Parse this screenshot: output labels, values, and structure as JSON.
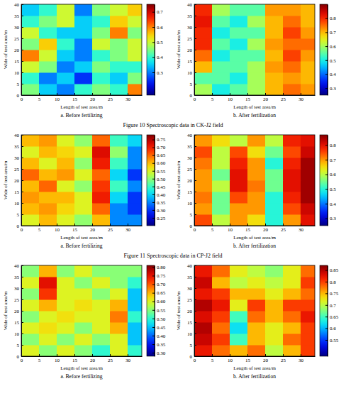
{
  "chart_data": [
    {
      "type": "heatmap",
      "title": "a. Before fertilizing",
      "x_label": "Length of test area/m",
      "y_label": "Wide of test area/m",
      "xlim": [
        0,
        34
      ],
      "xticks": [
        0,
        5,
        10,
        15,
        20,
        25,
        30
      ],
      "ylim": [
        0,
        40
      ],
      "yticks": [
        0,
        5,
        10,
        15,
        20,
        25,
        30,
        35,
        40
      ],
      "x_edges": [
        0,
        5,
        10,
        15,
        20,
        25,
        30,
        34
      ],
      "y_edges": [
        0,
        5,
        10,
        15,
        20,
        25,
        30,
        35,
        40
      ],
      "cells": [
        [
          0.45,
          0.35,
          0.3,
          0.4,
          0.45,
          0.4,
          0.6
        ],
        [
          0.4,
          0.3,
          0.35,
          0.25,
          0.4,
          0.35,
          0.45
        ],
        [
          0.5,
          0.45,
          0.3,
          0.35,
          0.45,
          0.4,
          0.4
        ],
        [
          0.6,
          0.5,
          0.35,
          0.3,
          0.4,
          0.45,
          0.5
        ],
        [
          0.45,
          0.55,
          0.4,
          0.3,
          0.5,
          0.45,
          0.5
        ],
        [
          0.5,
          0.4,
          0.35,
          0.35,
          0.45,
          0.6,
          0.45
        ],
        [
          0.4,
          0.45,
          0.5,
          0.35,
          0.4,
          0.55,
          0.5
        ],
        [
          0.35,
          0.4,
          0.5,
          0.3,
          0.45,
          0.5,
          0.55
        ]
      ],
      "color_range": [
        0.15,
        0.75
      ],
      "color_ticks": [
        0.3,
        0.4,
        0.5,
        0.6,
        0.7
      ]
    },
    {
      "type": "heatmap",
      "title": "b. After fertilization",
      "x_label": "Length of test area/m",
      "y_label": "Wide of test area/m",
      "xlim": [
        0,
        34
      ],
      "xticks": [
        0,
        5,
        10,
        15,
        20,
        25,
        30
      ],
      "ylim": [
        0,
        40
      ],
      "yticks": [
        0,
        5,
        10,
        15,
        20,
        25,
        30,
        35,
        40
      ],
      "x_edges": [
        0,
        5,
        10,
        15,
        20,
        25,
        30,
        34
      ],
      "y_edges": [
        0,
        5,
        10,
        15,
        20,
        25,
        30,
        35,
        40
      ],
      "cells": [
        [
          0.6,
          0.5,
          0.55,
          0.6,
          0.7,
          0.75,
          0.72
        ],
        [
          0.55,
          0.55,
          0.5,
          0.6,
          0.7,
          0.72,
          0.7
        ],
        [
          0.7,
          0.55,
          0.55,
          0.6,
          0.72,
          0.75,
          0.7
        ],
        [
          0.75,
          0.5,
          0.55,
          0.55,
          0.7,
          0.78,
          0.72
        ],
        [
          0.8,
          0.55,
          0.5,
          0.6,
          0.72,
          0.75,
          0.75
        ],
        [
          0.8,
          0.5,
          0.55,
          0.55,
          0.7,
          0.78,
          0.72
        ],
        [
          0.82,
          0.55,
          0.5,
          0.6,
          0.7,
          0.75,
          0.7
        ],
        [
          0.8,
          0.6,
          0.55,
          0.55,
          0.72,
          0.72,
          0.7
        ]
      ],
      "color_range": [
        0.25,
        0.9
      ],
      "color_ticks": [
        0.3,
        0.4,
        0.5,
        0.6,
        0.7,
        0.8
      ]
    },
    {
      "type": "heatmap",
      "title": "a. Before fertilizing",
      "x_label": "Length of test area/m",
      "y_label": "Wide of test area/m",
      "xlim": [
        0,
        34
      ],
      "xticks": [
        0,
        5,
        10,
        15,
        20,
        25,
        30
      ],
      "ylim": [
        0,
        40
      ],
      "yticks": [
        0,
        5,
        10,
        15,
        20,
        25,
        30,
        35,
        40
      ],
      "x_edges": [
        0,
        5,
        10,
        15,
        20,
        25,
        30,
        34
      ],
      "y_edges": [
        0,
        5,
        10,
        15,
        20,
        25,
        30,
        35,
        40
      ],
      "cells": [
        [
          0.55,
          0.6,
          0.55,
          0.5,
          0.6,
          0.35,
          0.35
        ],
        [
          0.6,
          0.62,
          0.58,
          0.55,
          0.65,
          0.35,
          0.3
        ],
        [
          0.62,
          0.6,
          0.6,
          0.55,
          0.7,
          0.4,
          0.3
        ],
        [
          0.6,
          0.65,
          0.55,
          0.5,
          0.68,
          0.45,
          0.35
        ],
        [
          0.65,
          0.6,
          0.62,
          0.55,
          0.65,
          0.4,
          0.3
        ],
        [
          0.6,
          0.55,
          0.6,
          0.5,
          0.7,
          0.45,
          0.35
        ],
        [
          0.55,
          0.6,
          0.58,
          0.55,
          0.72,
          0.5,
          0.35
        ],
        [
          0.6,
          0.62,
          0.55,
          0.5,
          0.65,
          0.45,
          0.4
        ]
      ],
      "color_range": [
        0.2,
        0.78
      ],
      "color_ticks": [
        0.25,
        {
          "value": 0.3,
          "label": "0.30"
        },
        0.35,
        {
          "value": 0.4,
          "label": "0.40"
        },
        0.45,
        {
          "value": 0.5,
          "label": "0.50"
        },
        0.55,
        {
          "value": 0.6,
          "label": "0.60"
        },
        0.65,
        {
          "value": 0.7,
          "label": "0.70"
        },
        0.75
      ]
    },
    {
      "type": "heatmap",
      "title": "b. After fertilization",
      "x_label": "Length of test area/m",
      "y_label": "Wide of test area/m",
      "xlim": [
        0,
        34
      ],
      "xticks": [
        0,
        5,
        10,
        15,
        20,
        25,
        30
      ],
      "ylim": [
        0,
        40
      ],
      "yticks": [
        0,
        5,
        10,
        15,
        20,
        25,
        30,
        35,
        40
      ],
      "x_edges": [
        0,
        5,
        10,
        15,
        20,
        25,
        30,
        34
      ],
      "y_edges": [
        0,
        5,
        10,
        15,
        20,
        25,
        30,
        35,
        40
      ],
      "cells": [
        [
          0.75,
          0.6,
          0.7,
          0.65,
          0.5,
          0.7,
          0.8
        ],
        [
          0.7,
          0.55,
          0.7,
          0.7,
          0.5,
          0.75,
          0.82
        ],
        [
          0.72,
          0.55,
          0.75,
          0.7,
          0.5,
          0.78,
          0.85
        ],
        [
          0.7,
          0.6,
          0.8,
          0.72,
          0.55,
          0.8,
          0.85
        ],
        [
          0.7,
          0.55,
          0.8,
          0.7,
          0.55,
          0.8,
          0.85
        ],
        [
          0.72,
          0.6,
          0.78,
          0.7,
          0.5,
          0.78,
          0.85
        ],
        [
          0.75,
          0.6,
          0.75,
          0.65,
          0.55,
          0.75,
          0.82
        ],
        [
          0.7,
          0.65,
          0.6,
          0.7,
          0.6,
          0.78,
          0.8
        ]
      ],
      "color_range": [
        0.25,
        0.87
      ],
      "color_ticks": [
        0.3,
        0.4,
        0.5,
        0.6,
        0.7,
        0.8
      ]
    },
    {
      "type": "heatmap",
      "title": "a. Before fertilizing",
      "x_label": "Length of test area/m",
      "y_label": "Wide of test area/m",
      "xlim": [
        0,
        34
      ],
      "xticks": [
        0,
        5,
        10,
        15,
        20,
        25,
        30
      ],
      "ylim": [
        0,
        40
      ],
      "yticks": [
        0,
        5,
        10,
        15,
        20,
        25,
        30,
        35,
        40
      ],
      "x_edges": [
        0,
        5,
        10,
        15,
        20,
        25,
        30,
        34
      ],
      "y_edges": [
        0,
        5,
        10,
        15,
        20,
        25,
        30,
        35,
        40
      ],
      "cells": [
        [
          0.6,
          0.55,
          0.6,
          0.55,
          0.5,
          0.6,
          0.5
        ],
        [
          0.55,
          0.6,
          0.55,
          0.6,
          0.55,
          0.6,
          0.45
        ],
        [
          0.6,
          0.62,
          0.6,
          0.55,
          0.6,
          0.65,
          0.45
        ],
        [
          0.55,
          0.6,
          0.62,
          0.6,
          0.6,
          0.68,
          0.5
        ],
        [
          0.6,
          0.65,
          0.6,
          0.62,
          0.6,
          0.65,
          0.45
        ],
        [
          0.55,
          0.72,
          0.6,
          0.6,
          0.55,
          0.6,
          0.45
        ],
        [
          0.6,
          0.75,
          0.6,
          0.55,
          0.6,
          0.55,
          0.5
        ],
        [
          0.55,
          0.65,
          0.55,
          0.6,
          0.55,
          0.55,
          0.55
        ]
      ],
      "color_range": [
        0.28,
        0.81
      ],
      "color_ticks": [
        {
          "value": 0.3,
          "label": "0.30"
        },
        0.35,
        {
          "value": 0.4,
          "label": "0.40"
        },
        0.45,
        {
          "value": 0.5,
          "label": "0.50"
        },
        0.55,
        {
          "value": 0.6,
          "label": "0.60"
        },
        0.65,
        {
          "value": 0.7,
          "label": "0.70"
        },
        0.75,
        {
          "value": 0.8,
          "label": "0.80"
        }
      ]
    },
    {
      "type": "heatmap",
      "title": "b. After fertilization",
      "x_label": "Length of test area/m",
      "y_label": "Wide of test area/m",
      "xlim": [
        0,
        34
      ],
      "xticks": [
        0,
        5,
        10,
        15,
        20,
        25,
        30
      ],
      "ylim": [
        0,
        40
      ],
      "yticks": [
        0,
        5,
        10,
        15,
        20,
        25,
        30,
        35,
        40
      ],
      "x_edges": [
        0,
        5,
        10,
        15,
        20,
        25,
        30,
        34
      ],
      "y_edges": [
        0,
        5,
        10,
        15,
        20,
        25,
        30,
        35,
        40
      ],
      "cells": [
        [
          0.82,
          0.78,
          0.75,
          0.78,
          0.7,
          0.75,
          0.8
        ],
        [
          0.84,
          0.8,
          0.65,
          0.75,
          0.72,
          0.78,
          0.8
        ],
        [
          0.85,
          0.78,
          0.62,
          0.75,
          0.72,
          0.75,
          0.8
        ],
        [
          0.83,
          0.8,
          0.65,
          0.78,
          0.75,
          0.78,
          0.82
        ],
        [
          0.85,
          0.82,
          0.72,
          0.8,
          0.75,
          0.8,
          0.8
        ],
        [
          0.82,
          0.8,
          0.75,
          0.75,
          0.72,
          0.75,
          0.78
        ],
        [
          0.84,
          0.75,
          0.7,
          0.72,
          0.7,
          0.72,
          0.8
        ],
        [
          0.82,
          0.78,
          0.72,
          0.7,
          0.68,
          0.72,
          0.78
        ]
      ],
      "color_range": [
        0.48,
        0.87
      ],
      "color_ticks": [
        0.55,
        0.6,
        0.65,
        0.7,
        0.75,
        0.8,
        0.85
      ]
    }
  ],
  "captions": [
    "Figure 10   Spectroscopic data in CK-J2 field",
    "Figure 11   Spectroscopic data in CP-J2 field"
  ]
}
